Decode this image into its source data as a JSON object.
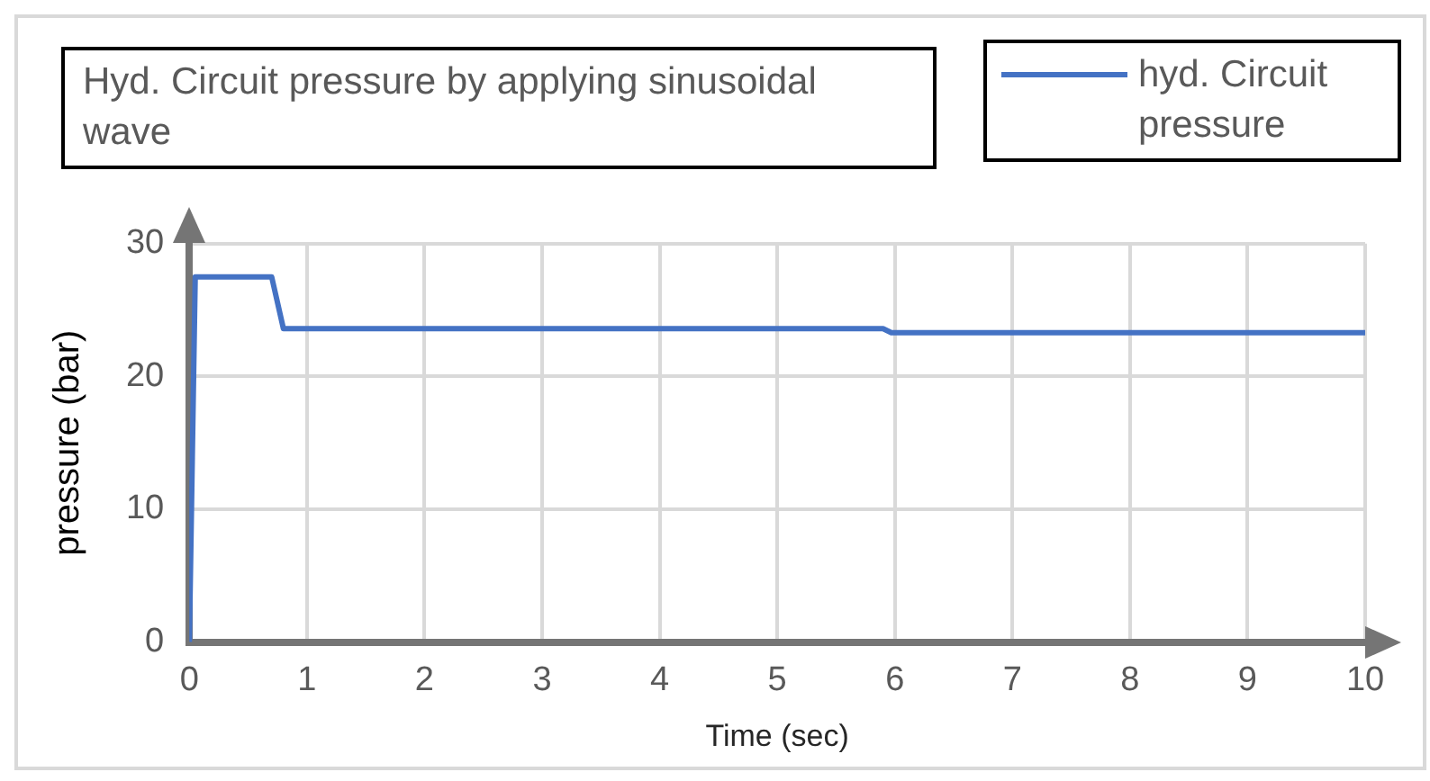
{
  "chart_data": {
    "type": "line",
    "title": "Hyd. Circuit pressure by applying sinusoidal wave",
    "xlabel": "Time (sec)",
    "ylabel": "pressure (bar)",
    "series": [
      {
        "name": "hyd. Circuit pressure",
        "color": "#4472c4",
        "x": [
          0,
          0.05,
          0.7,
          0.8,
          5.9,
          5.97,
          10
        ],
        "values": [
          0,
          27.5,
          27.5,
          23.6,
          23.6,
          23.3,
          23.3
        ]
      }
    ],
    "xlim": [
      0,
      10
    ],
    "xticks": [
      0,
      1,
      2,
      3,
      4,
      5,
      6,
      7,
      8,
      9,
      10
    ],
    "ylim": [
      0,
      30
    ],
    "yticks": [
      0,
      10,
      20,
      30
    ],
    "grid": true,
    "legend": "top right",
    "marker": "none",
    "line_style": "solid"
  }
}
